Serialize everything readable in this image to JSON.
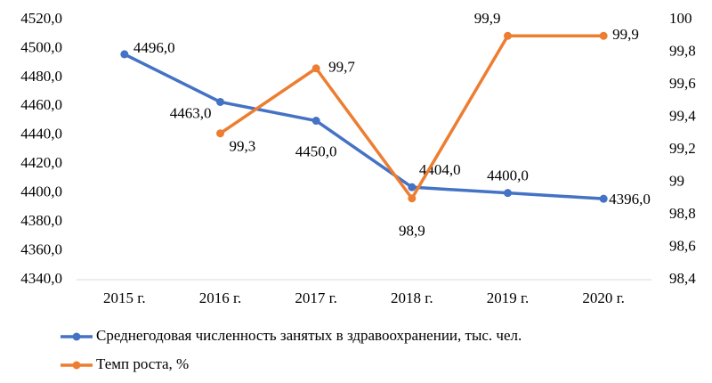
{
  "chart_data": {
    "type": "line",
    "categories": [
      "2015 г.",
      "2016 г.",
      "2017 г.",
      "2018 г.",
      "2019 г.",
      "2020 г."
    ],
    "series": [
      {
        "name": "Среднегодовая численность занятых в здравоохранении, тыс. чел.",
        "color": "#4472c4",
        "values": [
          4496.0,
          4463.0,
          4450.0,
          4404.0,
          4400.0,
          4396.0
        ],
        "value_labels": [
          "4496,0",
          "4463,0",
          "4450,0",
          "4404,0",
          "4400,0",
          "4396,0"
        ]
      },
      {
        "name": "Темп роста, %",
        "color": "#ed7d31",
        "axis": "y2",
        "values": [
          null,
          99.3,
          99.7,
          98.9,
          99.9,
          99.9
        ],
        "value_labels": [
          null,
          "99,3",
          "99,7",
          "98,9",
          "99,9",
          "99,9"
        ]
      }
    ],
    "ylim": [
      4340,
      4520
    ],
    "yticks": [
      {
        "value": 4340,
        "label": "4340,0"
      },
      {
        "value": 4360,
        "label": "4360,0"
      },
      {
        "value": 4380,
        "label": "4380,0"
      },
      {
        "value": 4400,
        "label": "4400,0"
      },
      {
        "value": 4420,
        "label": "4420,0"
      },
      {
        "value": 4440,
        "label": "4440,0"
      },
      {
        "value": 4460,
        "label": "4460,0"
      },
      {
        "value": 4480,
        "label": "4480,0"
      },
      {
        "value": 4500,
        "label": "4500,0"
      },
      {
        "value": 4520,
        "label": "4520,0"
      }
    ],
    "y2lim": [
      98.4,
      100
    ],
    "y2ticks": [
      {
        "value": 98.4,
        "label": "98,4"
      },
      {
        "value": 98.6,
        "label": "98,6"
      },
      {
        "value": 98.8,
        "label": "98,8"
      },
      99,
      {
        "value": 99.2,
        "label": "99,2"
      },
      {
        "value": 99.4,
        "label": "99,4"
      },
      {
        "value": 99.6,
        "label": "99,6"
      },
      {
        "value": 99.8,
        "label": "99,8"
      },
      100
    ],
    "grid": false,
    "legend": "bottom"
  }
}
